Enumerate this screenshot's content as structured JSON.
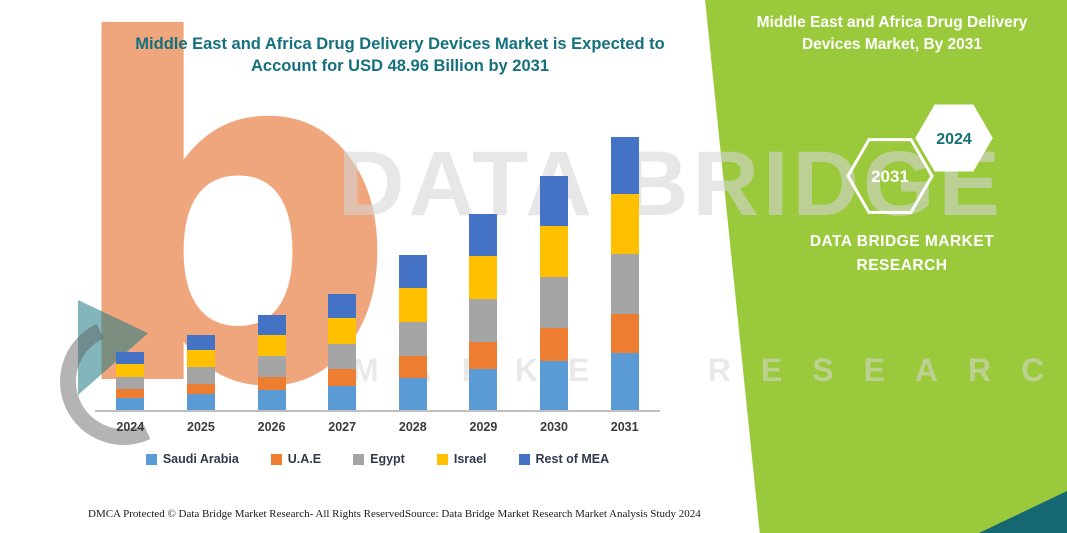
{
  "main_title": "Middle East and Africa Drug Delivery Devices Market is Expected to Account for USD 48.96 Billion by 2031",
  "side_panel": {
    "title": "Middle East and Africa Drug Delivery Devices Market, By 2031",
    "hex_left_year": "2031",
    "hex_right_year": "2024",
    "brand": "DATA BRIDGE MARKET RESEARCH"
  },
  "watermark": {
    "line1": "DATA BRIDGE",
    "line2": "MARKET RESEARCH",
    "logo_letter": "b"
  },
  "footer": {
    "dmca": "DMCA Protected © Data Bridge Market Research-  All Rights Reserved.",
    "source": "Source: Data Bridge Market Research  Market Analysis Study 2024"
  },
  "palette": {
    "green_panel": "#9aca3b",
    "teal_accent": "#156872",
    "title_teal": "#15707e",
    "logo_orange": "#e8702e"
  },
  "chart_data": {
    "type": "bar",
    "stacked": true,
    "unit": "USD Billion",
    "title": "Middle East and Africa Drug Delivery Devices Market is Expected to Account for USD 48.96 Billion by 2031",
    "xlabel": "",
    "ylabel": "",
    "ylim": [
      0,
      50
    ],
    "grid": false,
    "legend_position": "bottom",
    "categories": [
      "2024",
      "2025",
      "2026",
      "2027",
      "2028",
      "2029",
      "2030",
      "2031"
    ],
    "series": [
      {
        "name": "Saudi Arabia",
        "color": "#5B9BD5",
        "values": [
          2.2,
          2.8,
          3.6,
          4.4,
          5.8,
          7.4,
          8.8,
          10.3
        ]
      },
      {
        "name": "U.A.E",
        "color": "#ED7D31",
        "values": [
          1.5,
          1.9,
          2.4,
          2.9,
          3.9,
          4.9,
          5.9,
          6.9
        ]
      },
      {
        "name": "Egypt",
        "color": "#A5A5A5",
        "values": [
          2.3,
          3.0,
          3.7,
          4.6,
          6.1,
          7.7,
          9.2,
          10.8
        ]
      },
      {
        "name": "Israel",
        "color": "#FFC000",
        "values": [
          2.3,
          3.0,
          3.7,
          4.6,
          6.1,
          7.7,
          9.2,
          10.8
        ]
      },
      {
        "name": "Rest of MEA",
        "color": "#4472C4",
        "values": [
          2.1,
          2.8,
          3.6,
          4.3,
          5.9,
          7.5,
          8.9,
          10.2
        ]
      }
    ],
    "totals_estimated": [
      10.4,
      13.5,
      17.0,
      20.8,
      27.8,
      35.2,
      42.0,
      49.0
    ]
  }
}
